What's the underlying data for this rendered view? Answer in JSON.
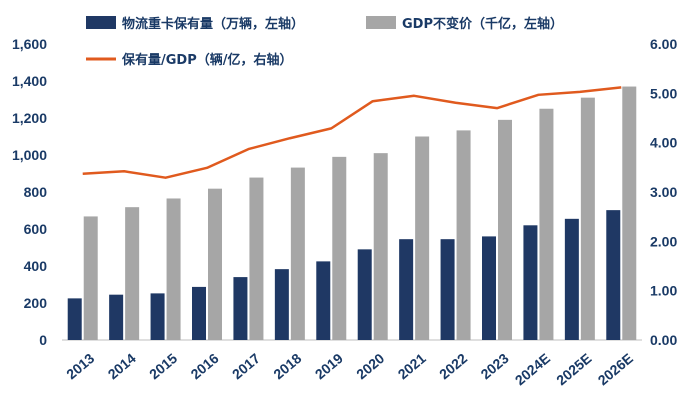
{
  "chart_data": {
    "type": "bar",
    "categories": [
      "2013",
      "2014",
      "2015",
      "2016",
      "2017",
      "2018",
      "2019",
      "2020",
      "2021",
      "2022",
      "2023",
      "2024E",
      "2025E",
      "2026E"
    ],
    "series": [
      {
        "name": "物流重卡保有量（万辆，左轴）",
        "kind": "bar",
        "axis": "left",
        "color": "#1f3864",
        "values": [
          225,
          245,
          252,
          287,
          340,
          383,
          425,
          490,
          545,
          545,
          560,
          620,
          655,
          702
        ]
      },
      {
        "name": "GDP不变价（千亿，左轴）",
        "kind": "bar",
        "axis": "left",
        "color": "#a6a6a6",
        "values": [
          668,
          718,
          765,
          818,
          878,
          932,
          990,
          1010,
          1100,
          1133,
          1190,
          1250,
          1310,
          1370
        ]
      },
      {
        "name": "保有量/GDP（辆/亿，右轴）",
        "kind": "line",
        "axis": "right",
        "color": "#e05a1e",
        "values": [
          3.37,
          3.42,
          3.29,
          3.49,
          3.87,
          4.09,
          4.29,
          4.84,
          4.95,
          4.81,
          4.7,
          4.97,
          5.03,
          5.12
        ]
      }
    ],
    "y_left": {
      "min": 0,
      "max": 1600,
      "ticks": [
        "0",
        "200",
        "400",
        "600",
        "800",
        "1,000",
        "1,200",
        "1,400",
        "1,600"
      ]
    },
    "y_right": {
      "min": 0,
      "max": 6,
      "ticks": [
        "0.00",
        "1.00",
        "2.00",
        "3.00",
        "4.00",
        "5.00",
        "6.00"
      ]
    },
    "grid": false,
    "legend_position": "top"
  }
}
